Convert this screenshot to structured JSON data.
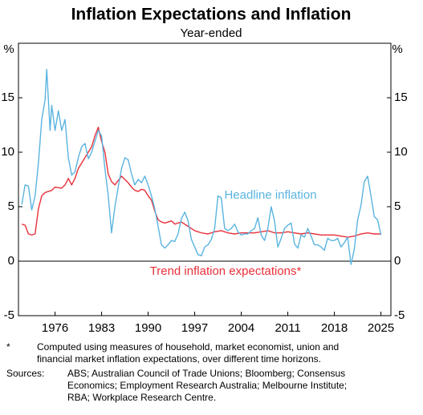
{
  "chart_data": {
    "type": "line",
    "title": "Inflation Expectations and Inflation",
    "subtitle": "Year-ended",
    "y_unit": "%",
    "xlim": [
      1970.5,
      2026.5
    ],
    "xticks": [
      1976,
      1983,
      1990,
      1997,
      2004,
      2011,
      2018,
      2025
    ],
    "ylim": [
      -5,
      20
    ],
    "yticks": [
      -5,
      0,
      5,
      10,
      15
    ],
    "series": [
      {
        "name": "Headline inflation",
        "color": "#5ab4e0",
        "x": [
          1971,
          1971.5,
          1972,
          1972.5,
          1973,
          1973.5,
          1974,
          1974.5,
          1974.75,
          1975.25,
          1975.5,
          1976,
          1976.5,
          1977,
          1977.5,
          1978,
          1978.5,
          1979,
          1979.5,
          1980,
          1980.5,
          1981,
          1981.5,
          1982,
          1982.5,
          1983,
          1983.25,
          1983.5,
          1984,
          1984.5,
          1985,
          1985.5,
          1986,
          1986.5,
          1987,
          1987.5,
          1988,
          1988.5,
          1989,
          1989.5,
          1990,
          1990.5,
          1991,
          1991.5,
          1992,
          1992.5,
          1993,
          1993.5,
          1994,
          1994.5,
          1995,
          1995.5,
          1996,
          1996.5,
          1997,
          1997.5,
          1998,
          1998.5,
          1999,
          1999.5,
          2000,
          2000.5,
          2001,
          2001.5,
          2002,
          2002.5,
          2003,
          2003.5,
          2004,
          2004.5,
          2005,
          2005.5,
          2006,
          2006.5,
          2007,
          2007.5,
          2008,
          2008.5,
          2009,
          2009.5,
          2010,
          2010.5,
          2011,
          2011.5,
          2012,
          2012.5,
          2013,
          2013.5,
          2014,
          2014.5,
          2015,
          2015.5,
          2016,
          2016.5,
          2017,
          2017.5,
          2018,
          2018.5,
          2019,
          2019.5,
          2020,
          2020.5,
          2021,
          2021.5,
          2022,
          2022.5,
          2023,
          2023.5,
          2024,
          2024.5,
          2025
        ],
        "values": [
          5.2,
          7.0,
          6.9,
          4.7,
          6.0,
          9.0,
          13.0,
          14.8,
          17.6,
          12.0,
          14.3,
          12.0,
          13.8,
          12.0,
          13.0,
          9.5,
          7.9,
          8.2,
          9.5,
          10.5,
          10.8,
          9.4,
          10.0,
          11.0,
          12.0,
          11.5,
          10.0,
          8.5,
          6.0,
          2.6,
          5.0,
          6.8,
          8.5,
          9.5,
          9.3,
          8.0,
          7.0,
          7.5,
          7.2,
          7.8,
          7.0,
          6.0,
          4.8,
          3.2,
          1.5,
          1.2,
          1.5,
          1.9,
          1.8,
          2.5,
          3.9,
          4.5,
          3.7,
          2.0,
          1.3,
          0.6,
          0.5,
          1.3,
          1.5,
          2.0,
          3.0,
          6.0,
          5.8,
          3.0,
          2.8,
          3.0,
          3.4,
          2.7,
          2.4,
          2.5,
          2.5,
          2.8,
          3.0,
          4.0,
          2.4,
          1.9,
          3.0,
          5.0,
          3.7,
          1.3,
          2.1,
          3.0,
          3.3,
          3.5,
          1.6,
          1.2,
          2.4,
          2.2,
          3.0,
          2.3,
          1.5,
          1.5,
          1.3,
          1.0,
          2.1,
          1.9,
          1.9,
          2.1,
          1.3,
          1.7,
          2.2,
          -0.3,
          1.1,
          3.8,
          5.1,
          7.3,
          7.8,
          6.0,
          4.1,
          3.8,
          2.4
        ]
      },
      {
        "name": "Trend inflation expectations*",
        "color": "#e8303a",
        "x": [
          1971,
          1971.5,
          1972,
          1972.5,
          1973,
          1973.5,
          1974,
          1974.5,
          1975,
          1975.5,
          1976,
          1977,
          1977.5,
          1978,
          1978.5,
          1979,
          1979.5,
          1980,
          1980.5,
          1981,
          1981.5,
          1982,
          1982.5,
          1983,
          1983.5,
          1984,
          1984.5,
          1985,
          1985.5,
          1986,
          1986.5,
          1987,
          1987.5,
          1988,
          1988.5,
          1989,
          1989.5,
          1990,
          1990.5,
          1991,
          1991.5,
          1992,
          1992.5,
          1993,
          1993.5,
          1994,
          1995,
          1996,
          1997,
          1998,
          1999,
          2000,
          2001,
          2002,
          2003,
          2004,
          2005,
          2006,
          2007,
          2008,
          2009,
          2010,
          2011,
          2012,
          2013,
          2014,
          2015,
          2016,
          2017,
          2018,
          2019,
          2020,
          2021,
          2022,
          2023,
          2024,
          2025
        ],
        "values": [
          3.4,
          3.3,
          2.5,
          2.4,
          2.5,
          4.8,
          6.0,
          6.3,
          6.4,
          6.5,
          6.8,
          6.7,
          7.0,
          7.6,
          7.0,
          7.6,
          8.5,
          9.0,
          9.5,
          10.0,
          10.5,
          11.5,
          12.3,
          11.0,
          10.0,
          8.0,
          7.3,
          7.0,
          7.4,
          7.8,
          7.5,
          7.2,
          6.8,
          6.5,
          6.4,
          6.6,
          6.5,
          6.0,
          5.6,
          4.6,
          3.8,
          3.6,
          3.5,
          3.6,
          3.7,
          3.4,
          3.6,
          3.2,
          2.8,
          2.6,
          2.5,
          2.7,
          2.8,
          2.6,
          2.5,
          2.6,
          2.6,
          2.6,
          2.7,
          2.8,
          2.6,
          2.6,
          2.7,
          2.6,
          2.5,
          2.6,
          2.5,
          2.4,
          2.4,
          2.4,
          2.3,
          2.2,
          2.3,
          2.5,
          2.6,
          2.5,
          2.5
        ]
      }
    ],
    "notes": {
      "footnote_marker": "*",
      "footnote_lines": [
        "Computed using measures of household, market economist, union and",
        "financial market inflation expectations, over different time horizons."
      ],
      "sources_label": "Sources:",
      "sources_lines": [
        "ABS; Australian Council of Trade Unions; Bloomberg; Consensus",
        "Economics; Employment Research Australia; Melbourne Institute;",
        "RBA; Workplace Research Centre."
      ]
    }
  }
}
